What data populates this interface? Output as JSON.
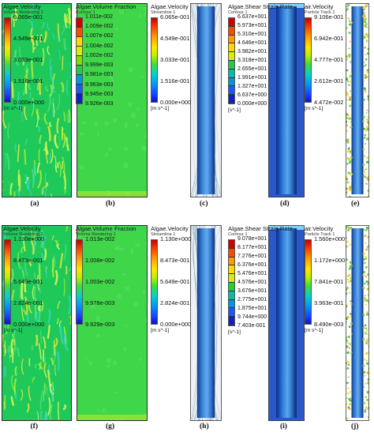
{
  "panels": [
    {
      "id": "a",
      "label": "(a)",
      "title": "Algae.Velocity",
      "subtitle": "Volume Rendering 1",
      "unit": "[m s^-1]",
      "ticks": [
        "6.065e-001",
        "4.549e-001",
        "3.033e-001",
        "1.516e-001",
        "0.000e+000"
      ],
      "colorbar": "continuous",
      "visual": "volume-rendering"
    },
    {
      "id": "b",
      "label": "(b)",
      "title": "Algae.Volume Fraction",
      "subtitle": "Contour 1",
      "unit": "",
      "ticks": [
        "1.011e-002",
        "1.009e-002",
        "1.007e-002",
        "1.004e-002",
        "1.002e-002",
        "9.999e-003",
        "9.981e-003",
        "9.963e-003",
        "9.945e-003",
        "9.926e-003"
      ],
      "colorbar": "banded",
      "visual": "uniform-green"
    },
    {
      "id": "c",
      "label": "(c)",
      "title": "Algae.Velocity",
      "subtitle": "Streamline 1",
      "unit": "[m s^-1]",
      "ticks": [
        "6.065e-001",
        "4.549e-001",
        "3.033e-001",
        "1.516e-001",
        "0.000e+000"
      ],
      "colorbar": "continuous",
      "visual": "streamline-cylinder"
    },
    {
      "id": "d",
      "label": "(d)",
      "title": "Algae.Shear Strain Rate",
      "subtitle": "Contour 1",
      "unit": "[s^-1]",
      "ticks": [
        "6.637e+001",
        "5.973e+001",
        "5.310e+001",
        "4.646e+001",
        "3.982e+001",
        "3.318e+001",
        "2.655e+001",
        "1.991e+001",
        "1.327e+001",
        "6.637e+000",
        "0.000e+000"
      ],
      "colorbar": "banded",
      "visual": "shear-cylinder"
    },
    {
      "id": "e",
      "label": "(e)",
      "title": "air.Velocity",
      "subtitle": "Particle Track 1",
      "unit": "[m s^-1]",
      "ticks": [
        "9.106e-001",
        "6.942e-001",
        "4.777e-001",
        "2.612e-001",
        "4.472e-002"
      ],
      "colorbar": "continuous",
      "visual": "particle-cylinder"
    },
    {
      "id": "f",
      "label": "(f)",
      "title": "Algae.Velocity",
      "subtitle": "Volume Rendering 1",
      "unit": "[m s^-1]",
      "ticks": [
        "1.130e+000",
        "8.473e-001",
        "5.649e-001",
        "2.824e-001",
        "0.000e+000"
      ],
      "colorbar": "continuous",
      "visual": "volume-rendering"
    },
    {
      "id": "g",
      "label": "(g)",
      "title": "Algae.Volume Fraction",
      "subtitle": "Volume Rendering 1",
      "unit": "",
      "ticks": [
        "1.013e-002",
        "1.008e-002",
        "1.003e-002",
        "9.978e-003",
        "9.929e-003"
      ],
      "colorbar": "continuous",
      "visual": "uniform-green"
    },
    {
      "id": "h",
      "label": "(h)",
      "title": "Algae.Velocity",
      "subtitle": "Streamline 1",
      "unit": "[m s^-1]",
      "ticks": [
        "1.130e+000",
        "8.473e-001",
        "5.649e-001",
        "2.824e-001",
        "0.000e+000"
      ],
      "colorbar": "continuous",
      "visual": "streamline-cylinder"
    },
    {
      "id": "i",
      "label": "(i)",
      "title": "Algae.Shear Strain Rate",
      "subtitle": "Contour 1",
      "unit": "[s^-1]",
      "ticks": [
        "9.078e+001",
        "8.177e+001",
        "7.276e+001",
        "6.376e+001",
        "5.476e+001",
        "4.576e+001",
        "3.676e+001",
        "2.775e+001",
        "1.875e+001",
        "9.744e+000",
        "7.403e-001"
      ],
      "colorbar": "banded",
      "visual": "shear-cylinder"
    },
    {
      "id": "j",
      "label": "(j)",
      "title": "air.Velocity",
      "subtitle": "Particle Track 1",
      "unit": "[m s^-1]",
      "ticks": [
        "1.560e+000",
        "1.172e+000",
        "7.841e-001",
        "3.963e-001",
        "8.490e-003"
      ],
      "colorbar": "continuous",
      "visual": "particle-cylinder"
    }
  ]
}
